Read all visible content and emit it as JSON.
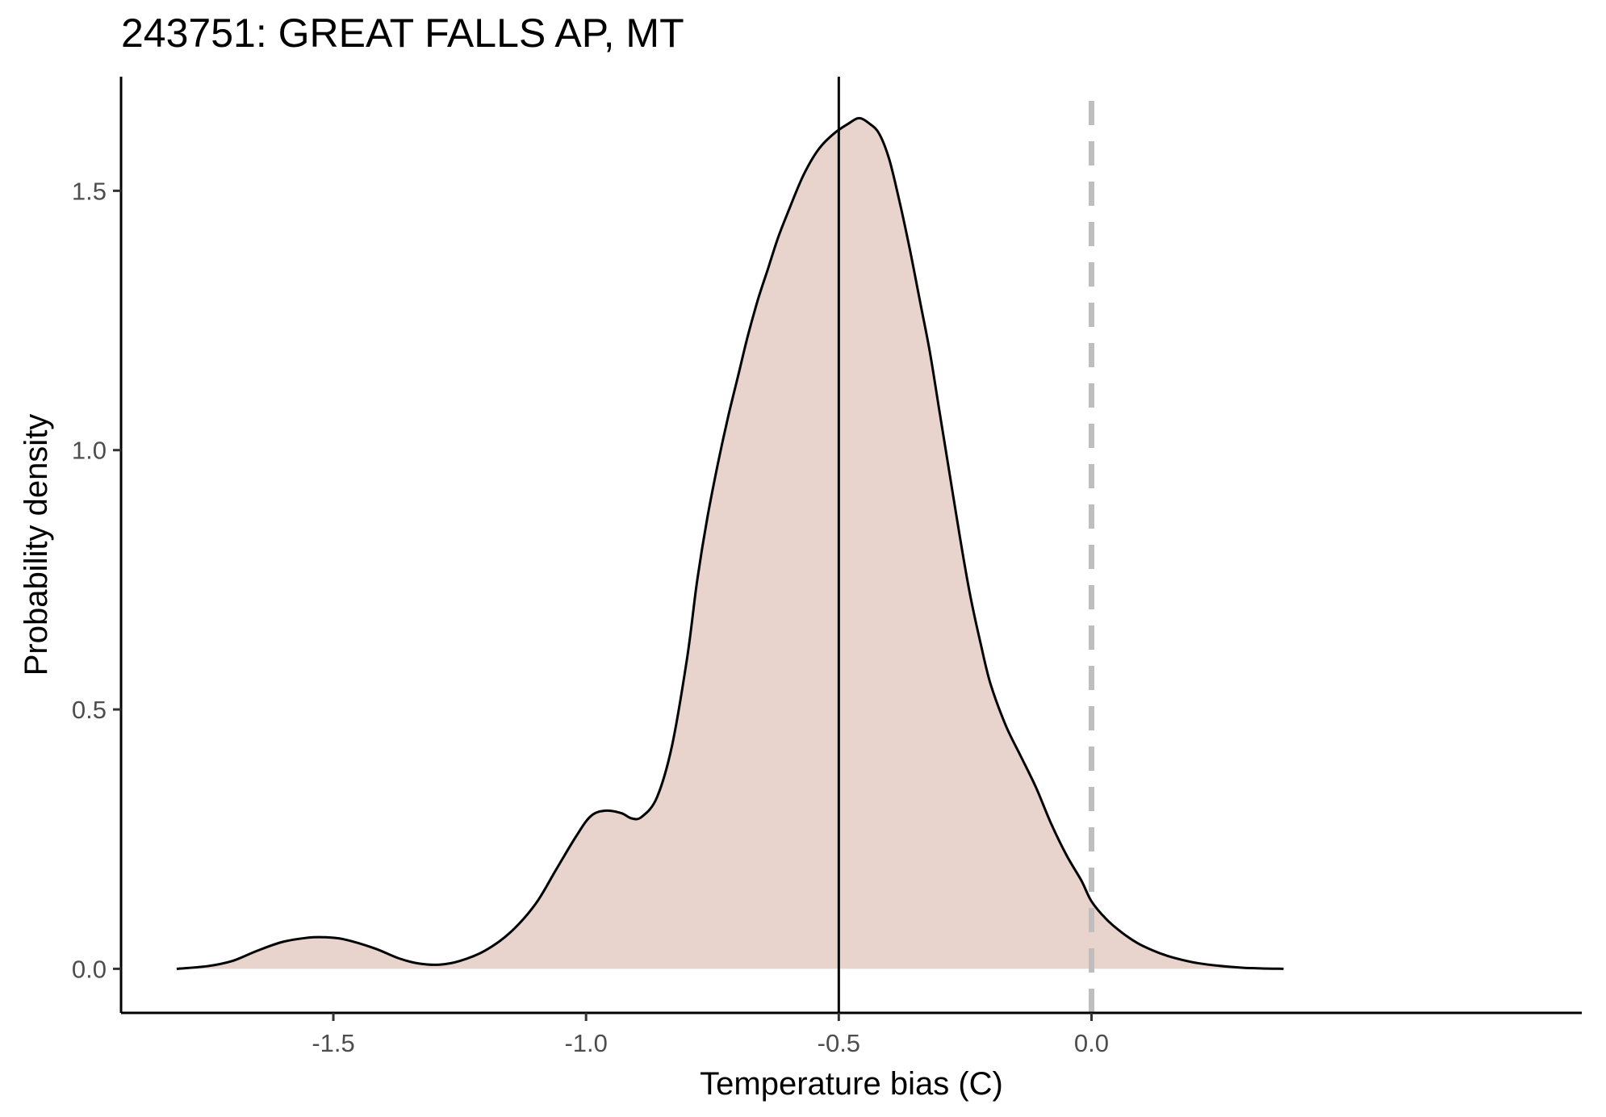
{
  "chart_data": {
    "type": "area",
    "title": "243751: GREAT FALLS AP, MT",
    "xlabel": "Temperature bias (C)",
    "ylabel": "Probability density",
    "xlim": [
      -1.92,
      0.97
    ],
    "ylim": [
      -0.085,
      1.72
    ],
    "xticks": [
      -1.5,
      -1.0,
      -0.5,
      0.0
    ],
    "xtick_labels": [
      "-1.5",
      "-1.0",
      "-0.5",
      "0.0"
    ],
    "yticks": [
      0.0,
      0.5,
      1.0,
      1.5
    ],
    "ytick_labels": [
      "0.0",
      "0.5",
      "1.0",
      "1.5"
    ],
    "grid": false,
    "fill_color": "#e8d4cd",
    "line_color": "#000000",
    "reference_lines": [
      {
        "x": -0.5,
        "style": "solid",
        "color": "#000000"
      },
      {
        "x": 0.0,
        "style": "dashed",
        "color": "#bebebe"
      }
    ],
    "density": {
      "x": [
        -1.81,
        -1.75,
        -1.7,
        -1.65,
        -1.6,
        -1.55,
        -1.52,
        -1.48,
        -1.42,
        -1.37,
        -1.33,
        -1.29,
        -1.25,
        -1.2,
        -1.15,
        -1.1,
        -1.06,
        -1.02,
        -0.99,
        -0.96,
        -0.93,
        -0.91,
        -0.89,
        -0.86,
        -0.83,
        -0.8,
        -0.78,
        -0.76,
        -0.74,
        -0.72,
        -0.7,
        -0.68,
        -0.66,
        -0.64,
        -0.62,
        -0.6,
        -0.57,
        -0.54,
        -0.51,
        -0.48,
        -0.46,
        -0.44,
        -0.42,
        -0.4,
        -0.38,
        -0.36,
        -0.34,
        -0.32,
        -0.3,
        -0.28,
        -0.26,
        -0.24,
        -0.22,
        -0.2,
        -0.17,
        -0.14,
        -0.11,
        -0.08,
        -0.05,
        -0.02,
        0.0,
        0.03,
        0.06,
        0.09,
        0.12,
        0.15,
        0.18,
        0.21,
        0.25,
        0.3,
        0.35,
        0.38
      ],
      "y": [
        0.0,
        0.005,
        0.015,
        0.035,
        0.052,
        0.06,
        0.061,
        0.057,
        0.04,
        0.02,
        0.01,
        0.008,
        0.015,
        0.035,
        0.07,
        0.125,
        0.19,
        0.255,
        0.295,
        0.305,
        0.3,
        0.29,
        0.293,
        0.33,
        0.43,
        0.6,
        0.75,
        0.87,
        0.97,
        1.06,
        1.14,
        1.22,
        1.29,
        1.35,
        1.41,
        1.46,
        1.53,
        1.58,
        1.61,
        1.63,
        1.64,
        1.63,
        1.61,
        1.56,
        1.48,
        1.39,
        1.29,
        1.19,
        1.07,
        0.95,
        0.83,
        0.72,
        0.63,
        0.55,
        0.47,
        0.41,
        0.35,
        0.28,
        0.22,
        0.17,
        0.13,
        0.095,
        0.07,
        0.05,
        0.036,
        0.025,
        0.017,
        0.011,
        0.006,
        0.002,
        0.0005,
        0.0
      ]
    }
  }
}
